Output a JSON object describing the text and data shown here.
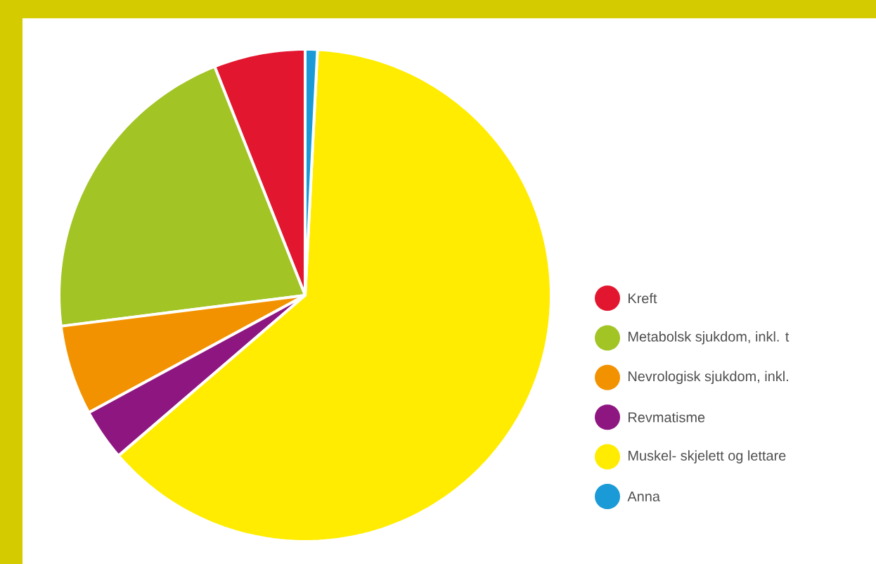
{
  "chart_data": {
    "type": "pie",
    "categories": [
      "Kreft",
      "Metabolsk sjukdom, inkl. t",
      "Nevrologisk sjukdom, inkl.",
      "Revmatisme",
      "Muskel- skjelett og lettare",
      "Anna"
    ],
    "values": [
      6,
      21,
      5.9,
      3.4,
      62.9,
      0.8
    ],
    "colors": [
      "#e3162f",
      "#a2c424",
      "#f39200",
      "#8e1680",
      "#ffec00",
      "#1a9ad6"
    ],
    "legend": "right"
  }
}
